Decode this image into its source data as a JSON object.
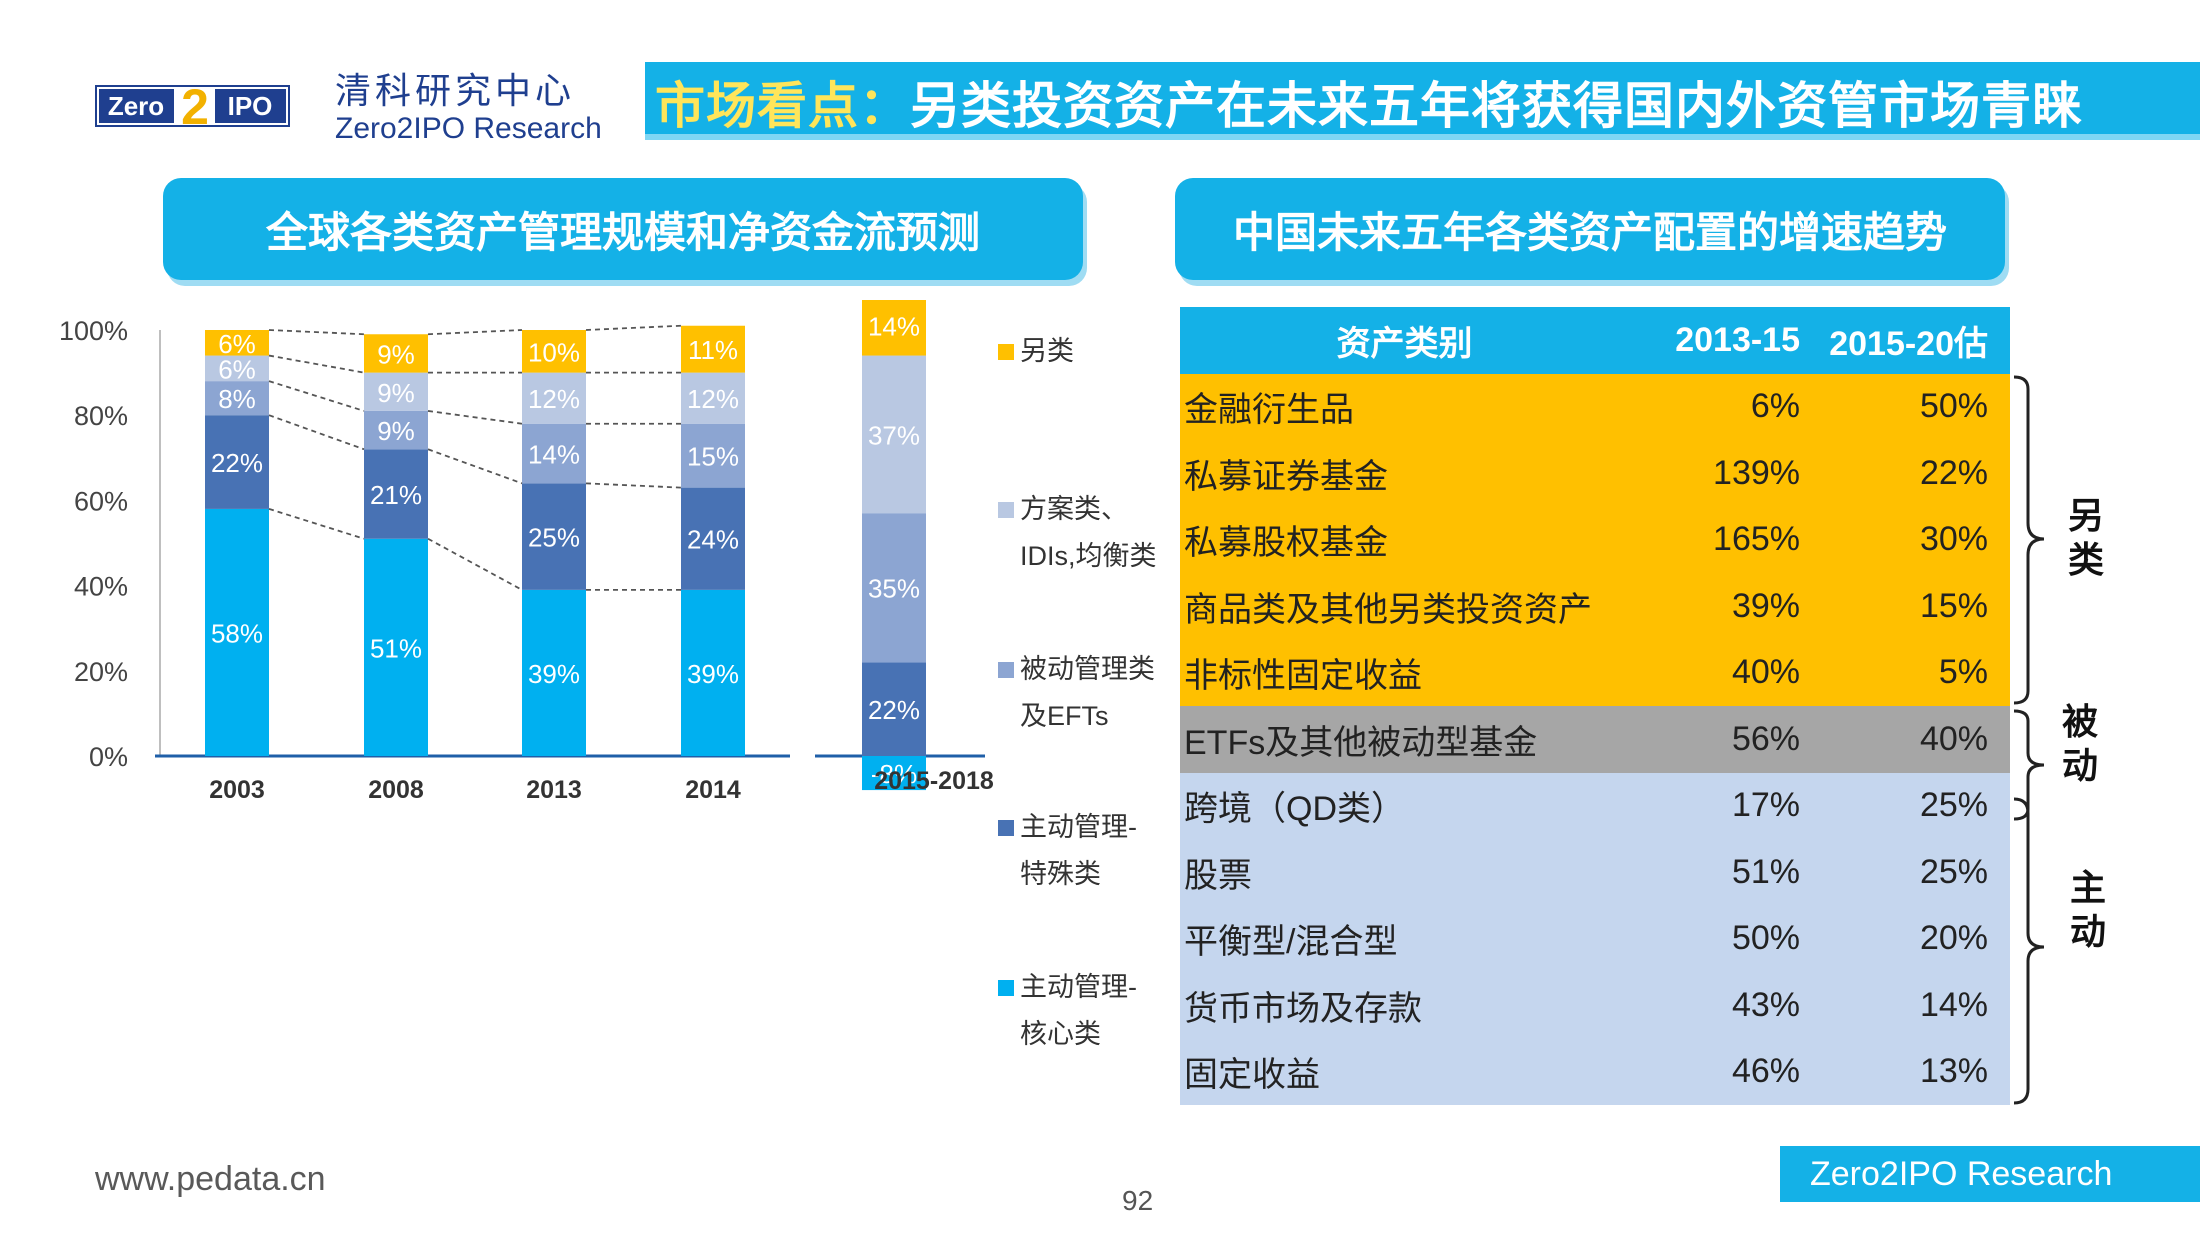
{
  "header": {
    "logo_text_left": "Zero",
    "logo_digit": "2",
    "logo_text_right": "IPO",
    "brand_cn": "清科研究中心",
    "brand_en": "Zero2IPO Research",
    "title_highlight": "市场看点：",
    "title_main": "另类投资资产在未来五年将获得国内外资管市场青睐"
  },
  "left_section_title": "全球各类资产管理规模和净资金流预测",
  "right_section_title": "中国未来五年各类资产配置的增速趋势",
  "colors": {
    "core": "#00b0f0",
    "special": "#4872b4",
    "passive": "#8ca5d2",
    "solutions": "#b9c8e2",
    "alternative": "#ffc000",
    "accent": "#14b1e7"
  },
  "chart_data": {
    "type": "bar",
    "stacked": true,
    "title": "全球各类资产管理规模和净资金流预测",
    "categories": [
      "2003",
      "2008",
      "2013",
      "2014",
      "2015-2018"
    ],
    "ylim": [
      0,
      100
    ],
    "yticks": [
      "0%",
      "20%",
      "40%",
      "60%",
      "80%",
      "100%"
    ],
    "series": [
      {
        "name": "主动管理-核心类",
        "values": [
          58,
          51,
          39,
          39,
          -8
        ]
      },
      {
        "name": "主动管理-特殊类",
        "values": [
          22,
          21,
          25,
          24,
          22
        ]
      },
      {
        "name": "被动管理类及EFTs",
        "values": [
          8,
          9,
          14,
          15,
          35
        ]
      },
      {
        "name": "方案类、IDIs,均衡类",
        "values": [
          6,
          9,
          12,
          12,
          37
        ]
      },
      {
        "name": "另类",
        "values": [
          6,
          9,
          10,
          11,
          14
        ]
      }
    ],
    "labels": [
      [
        "58%",
        "51%",
        "39%",
        "39%",
        "-8%"
      ],
      [
        "22%",
        "21%",
        "25%",
        "24%",
        "22%"
      ],
      [
        "8%",
        "9%",
        "14%",
        "15%",
        "35%"
      ],
      [
        "6%",
        "9%",
        "12%",
        "12%",
        "37%"
      ],
      [
        "6%",
        "9%",
        "10%",
        "11%",
        "14%"
      ]
    ],
    "legend": [
      {
        "line1": "另类",
        "line2": ""
      },
      {
        "line1": "方案类、",
        "line2": "IDIs,均衡类"
      },
      {
        "line1": "被动管理类",
        "line2": "及EFTs"
      },
      {
        "line1": "主动管理-",
        "line2": "特殊类"
      },
      {
        "line1": "主动管理-",
        "line2": "核心类"
      }
    ]
  },
  "table": {
    "headers": [
      "资产类别",
      "2013-15",
      "2015-20估"
    ],
    "rows": [
      {
        "name": "金融衍生品",
        "v1": "6%",
        "v2": "50%",
        "group": "alt"
      },
      {
        "name": "私募证券基金",
        "v1": "139%",
        "v2": "22%",
        "group": "alt"
      },
      {
        "name": "私募股权基金",
        "v1": "165%",
        "v2": "30%",
        "group": "alt"
      },
      {
        "name": "商品类及其他另类投资资产",
        "v1": "39%",
        "v2": "15%",
        "group": "alt"
      },
      {
        "name": "非标性固定收益",
        "v1": "40%",
        "v2": "5%",
        "group": "alt"
      },
      {
        "name": "ETFs及其他被动型基金",
        "v1": "56%",
        "v2": "40%",
        "group": "pas"
      },
      {
        "name": "跨境（QD类）",
        "v1": "17%",
        "v2": "25%",
        "group": "act"
      },
      {
        "name": "股票",
        "v1": "51%",
        "v2": "25%",
        "group": "act"
      },
      {
        "name": "平衡型/混合型",
        "v1": "50%",
        "v2": "20%",
        "group": "act"
      },
      {
        "name": "货币市场及存款",
        "v1": "43%",
        "v2": "14%",
        "group": "act"
      },
      {
        "name": "固定收益",
        "v1": "46%",
        "v2": "13%",
        "group": "act"
      }
    ],
    "groups": {
      "alt": [
        "另",
        "类"
      ],
      "pas": [
        "被",
        "动"
      ],
      "act": [
        "主",
        "动"
      ]
    }
  },
  "footer": {
    "url": "www.pedata.cn",
    "page": "92",
    "brand": "Zero2IPO Research"
  }
}
